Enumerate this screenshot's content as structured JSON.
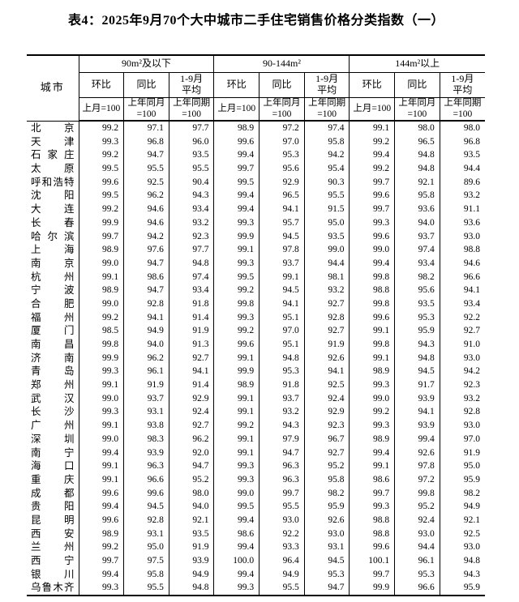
{
  "title": "表4：2025年9月70个大中城市二手住宅销售价格分类指数（一）",
  "table": {
    "city_header": "城市",
    "groups": [
      {
        "label": "90m²及以下",
        "subcols": [
          {
            "label": "环比",
            "base": "上月=100"
          },
          {
            "label": "同比",
            "base": "上年同月\n=100"
          },
          {
            "label": "1-9月\n平均",
            "base": "上年同期\n=100"
          }
        ]
      },
      {
        "label": "90-144m²",
        "subcols": [
          {
            "label": "环比",
            "base": "上月=100"
          },
          {
            "label": "同比",
            "base": "上年同月\n=100"
          },
          {
            "label": "1-9月\n平均",
            "base": "上年同期\n=100"
          }
        ]
      },
      {
        "label": "144m²以上",
        "subcols": [
          {
            "label": "环比",
            "base": "上月=100"
          },
          {
            "label": "同比",
            "base": "上年同月\n=100"
          },
          {
            "label": "1-9月\n平均",
            "base": "上年同期\n=100"
          }
        ]
      }
    ],
    "rows": [
      {
        "city": "北京",
        "values": [
          "99.2",
          "97.1",
          "97.7",
          "98.9",
          "97.2",
          "97.4",
          "99.1",
          "98.0",
          "98.0"
        ]
      },
      {
        "city": "天津",
        "values": [
          "99.3",
          "96.8",
          "96.0",
          "99.6",
          "97.0",
          "95.8",
          "99.2",
          "96.5",
          "96.8"
        ]
      },
      {
        "city": "石家庄",
        "values": [
          "99.2",
          "94.7",
          "93.5",
          "99.4",
          "95.3",
          "94.2",
          "99.4",
          "94.8",
          "93.5"
        ]
      },
      {
        "city": "太原",
        "values": [
          "99.5",
          "95.5",
          "95.5",
          "99.7",
          "95.6",
          "95.4",
          "99.2",
          "94.8",
          "94.4"
        ]
      },
      {
        "city": "呼和浩特",
        "values": [
          "99.6",
          "92.5",
          "90.4",
          "99.5",
          "92.9",
          "90.3",
          "99.7",
          "92.1",
          "89.6"
        ]
      },
      {
        "city": "沈阳",
        "values": [
          "99.5",
          "96.2",
          "94.3",
          "99.4",
          "96.5",
          "95.5",
          "99.6",
          "95.8",
          "93.2"
        ]
      },
      {
        "city": "大连",
        "values": [
          "99.2",
          "94.6",
          "93.4",
          "99.4",
          "94.1",
          "91.5",
          "99.7",
          "93.6",
          "91.1"
        ]
      },
      {
        "city": "长春",
        "values": [
          "99.9",
          "94.6",
          "93.2",
          "99.3",
          "95.7",
          "95.0",
          "99.3",
          "94.0",
          "93.6"
        ]
      },
      {
        "city": "哈尔滨",
        "values": [
          "99.7",
          "94.2",
          "92.3",
          "99.9",
          "94.5",
          "93.5",
          "99.6",
          "93.7",
          "93.0"
        ]
      },
      {
        "city": "上海",
        "values": [
          "98.9",
          "97.6",
          "97.7",
          "99.1",
          "97.8",
          "99.0",
          "99.0",
          "97.4",
          "98.8"
        ]
      },
      {
        "city": "南京",
        "values": [
          "99.0",
          "94.7",
          "94.8",
          "99.3",
          "93.7",
          "94.4",
          "99.4",
          "93.4",
          "94.6"
        ]
      },
      {
        "city": "杭州",
        "values": [
          "99.1",
          "98.6",
          "97.4",
          "99.5",
          "99.1",
          "98.1",
          "99.8",
          "98.2",
          "96.6"
        ]
      },
      {
        "city": "宁波",
        "values": [
          "98.9",
          "94.7",
          "93.4",
          "99.2",
          "94.5",
          "93.2",
          "98.8",
          "95.6",
          "94.1"
        ]
      },
      {
        "city": "合肥",
        "values": [
          "99.0",
          "92.8",
          "91.8",
          "99.8",
          "94.1",
          "92.7",
          "99.8",
          "93.5",
          "93.4"
        ]
      },
      {
        "city": "福州",
        "values": [
          "99.2",
          "94.1",
          "91.4",
          "99.3",
          "95.1",
          "92.8",
          "99.6",
          "95.3",
          "92.2"
        ]
      },
      {
        "city": "厦门",
        "values": [
          "98.5",
          "94.9",
          "91.9",
          "99.2",
          "97.0",
          "92.7",
          "99.1",
          "95.9",
          "92.7"
        ]
      },
      {
        "city": "南昌",
        "values": [
          "99.8",
          "94.0",
          "91.3",
          "99.6",
          "95.1",
          "91.9",
          "99.8",
          "94.3",
          "91.0"
        ]
      },
      {
        "city": "济南",
        "values": [
          "99.9",
          "96.2",
          "92.7",
          "99.1",
          "94.8",
          "92.6",
          "99.1",
          "94.8",
          "93.0"
        ]
      },
      {
        "city": "青岛",
        "values": [
          "99.3",
          "96.1",
          "94.1",
          "99.9",
          "95.3",
          "94.1",
          "98.9",
          "94.5",
          "94.2"
        ]
      },
      {
        "city": "郑州",
        "values": [
          "99.1",
          "91.9",
          "91.4",
          "98.9",
          "91.8",
          "92.5",
          "99.3",
          "91.7",
          "92.3"
        ]
      },
      {
        "city": "武汉",
        "values": [
          "99.0",
          "93.7",
          "92.9",
          "99.1",
          "93.7",
          "92.4",
          "99.0",
          "93.9",
          "93.2"
        ]
      },
      {
        "city": "长沙",
        "values": [
          "99.3",
          "93.1",
          "92.4",
          "99.1",
          "93.2",
          "92.9",
          "99.2",
          "94.1",
          "92.8"
        ]
      },
      {
        "city": "广州",
        "values": [
          "99.1",
          "93.8",
          "92.7",
          "99.2",
          "94.3",
          "92.3",
          "99.3",
          "93.9",
          "93.0"
        ]
      },
      {
        "city": "深圳",
        "values": [
          "99.0",
          "98.3",
          "96.2",
          "99.1",
          "97.9",
          "96.7",
          "98.9",
          "99.4",
          "97.0"
        ]
      },
      {
        "city": "南宁",
        "values": [
          "99.4",
          "93.9",
          "92.0",
          "99.1",
          "94.7",
          "92.7",
          "99.4",
          "92.6",
          "91.9"
        ]
      },
      {
        "city": "海口",
        "values": [
          "99.1",
          "96.3",
          "94.7",
          "99.3",
          "96.3",
          "95.2",
          "99.1",
          "97.8",
          "95.0"
        ]
      },
      {
        "city": "重庆",
        "values": [
          "99.1",
          "96.6",
          "95.2",
          "99.3",
          "96.3",
          "95.8",
          "98.6",
          "97.2",
          "95.9"
        ]
      },
      {
        "city": "成都",
        "values": [
          "99.6",
          "99.6",
          "98.0",
          "99.0",
          "99.7",
          "98.2",
          "99.7",
          "99.8",
          "98.2"
        ]
      },
      {
        "city": "贵阳",
        "values": [
          "99.4",
          "94.5",
          "94.0",
          "99.5",
          "95.5",
          "95.9",
          "99.3",
          "95.2",
          "94.9"
        ]
      },
      {
        "city": "昆明",
        "values": [
          "99.6",
          "92.8",
          "92.1",
          "99.4",
          "93.0",
          "92.6",
          "98.8",
          "92.4",
          "92.1"
        ]
      },
      {
        "city": "西安",
        "values": [
          "98.9",
          "93.1",
          "93.5",
          "98.6",
          "92.2",
          "93.0",
          "98.8",
          "93.0",
          "92.5"
        ]
      },
      {
        "city": "兰州",
        "values": [
          "99.2",
          "95.0",
          "91.9",
          "99.4",
          "93.3",
          "93.1",
          "99.6",
          "94.4",
          "93.0"
        ]
      },
      {
        "city": "西宁",
        "values": [
          "99.7",
          "97.5",
          "93.9",
          "100.0",
          "96.4",
          "94.5",
          "100.1",
          "96.1",
          "94.8"
        ]
      },
      {
        "city": "银川",
        "values": [
          "99.4",
          "95.8",
          "94.9",
          "99.4",
          "94.9",
          "95.3",
          "99.7",
          "95.3",
          "94.3"
        ]
      },
      {
        "city": "乌鲁木齐",
        "values": [
          "99.3",
          "95.5",
          "94.8",
          "99.3",
          "95.5",
          "94.7",
          "99.9",
          "96.6",
          "95.9"
        ]
      }
    ]
  }
}
